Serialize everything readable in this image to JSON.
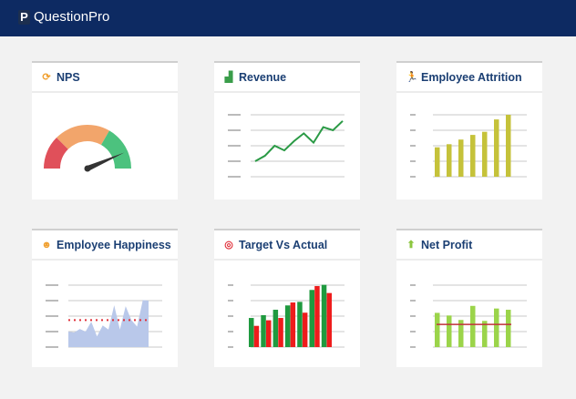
{
  "app": {
    "title": "QuestionPro",
    "logo_letter": "P"
  },
  "colors": {
    "header": "#0d2a62",
    "title": "#1b3f73",
    "grid": "#c8c8c8"
  },
  "cards": [
    {
      "title": "NPS",
      "icon": "gauge-icon",
      "icon_glyph": "⟳",
      "icon_color": "#f0a030",
      "chart": {
        "type": "gauge",
        "segments": [
          {
            "color": "#e0505a"
          },
          {
            "color": "#f2a56b"
          },
          {
            "color": "#4cc27e"
          }
        ],
        "value": 0.87
      }
    },
    {
      "title": "Revenue",
      "icon": "bar-growth-icon",
      "icon_glyph": "▟",
      "icon_color": "#3a9d4a",
      "chart": {
        "type": "line",
        "color": "#2a9a45",
        "values": [
          1.0,
          1.35,
          2.0,
          1.7,
          2.3,
          2.8,
          2.2,
          3.2,
          3.0,
          3.6
        ],
        "ylim": [
          0,
          4
        ]
      }
    },
    {
      "title": "Employee Attrition",
      "icon": "running-person-icon",
      "icon_glyph": "🏃",
      "icon_color": "#e0502a",
      "chart": {
        "type": "bar",
        "color": "#c5c23a",
        "values": [
          1.9,
          2.1,
          2.4,
          2.7,
          2.9,
          3.7,
          4.0
        ],
        "ylim": [
          0,
          4
        ]
      }
    },
    {
      "title": "Employee Happiness",
      "icon": "smiley-icon",
      "icon_glyph": "☻",
      "icon_color": "#f0a030",
      "chart": {
        "type": "area",
        "color": "#b9c8ea",
        "values": [
          1.0,
          0.94,
          1.17,
          1.0,
          1.64,
          0.69,
          1.4,
          1.13,
          2.7,
          1.13,
          2.64,
          1.74,
          1.32,
          3.04,
          3.0
        ],
        "target": 1.74,
        "target_color": "#e0303a",
        "ylim": [
          0,
          4
        ]
      }
    },
    {
      "title": "Target Vs Actual",
      "icon": "target-icon",
      "icon_glyph": "◎",
      "icon_color": "#e0303a",
      "chart": {
        "type": "grouped-bar",
        "series": [
          {
            "color": "#1f9a3f",
            "values": [
              1.88,
              2.06,
              2.41,
              2.69,
              2.92,
              3.69,
              4.02
            ]
          },
          {
            "color": "#ee1c1c",
            "values": [
              1.37,
              1.73,
              1.88,
              2.88,
              2.22,
              3.94,
              3.49
            ]
          }
        ],
        "ylim": [
          0,
          4
        ]
      }
    },
    {
      "title": "Net Profit",
      "icon": "arrow-up-icon",
      "icon_glyph": "⬆",
      "icon_color": "#8cc63f",
      "chart": {
        "type": "bar-with-line",
        "color": "#9bd44a",
        "values": [
          2.21,
          2.04,
          1.75,
          2.66,
          1.69,
          2.49,
          2.41
        ],
        "target": 1.46,
        "target_color": "#c0303a",
        "ylim": [
          0,
          4
        ]
      }
    }
  ]
}
